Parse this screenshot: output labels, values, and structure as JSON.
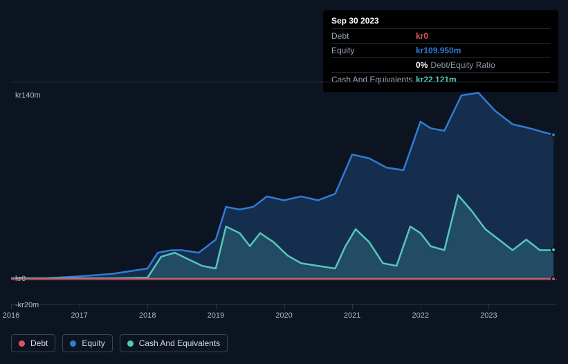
{
  "info_panel": {
    "title": "Sep 30 2023",
    "rows": [
      {
        "label": "Debt",
        "value": "kr0",
        "color": "#e15361",
        "extra": ""
      },
      {
        "label": "Equity",
        "value": "kr109.950m",
        "color": "#2f7cd6",
        "extra": ""
      },
      {
        "label": "",
        "value": "0%",
        "color": "#ffffff",
        "extra": "Debt/Equity Ratio"
      },
      {
        "label": "Cash And Equivalents",
        "value": "kr22.121m",
        "color": "#56c8b7",
        "extra": ""
      }
    ]
  },
  "chart": {
    "type": "line",
    "background_color": "#0d1421",
    "grid_color": "#2a364d",
    "baseline_color": "#58647a",
    "label_color": "#b0b8c4",
    "label_fontsize": 11,
    "ylim": [
      -20,
      150
    ],
    "yticks": [
      {
        "value": 140,
        "label": "kr140m"
      },
      {
        "value": 0,
        "label": "kr0"
      },
      {
        "value": -20,
        "label": "-kr20m"
      }
    ],
    "xlim": [
      2016,
      2024
    ],
    "xticks": [
      {
        "value": 2016,
        "label": "2016"
      },
      {
        "value": 2017,
        "label": "2017"
      },
      {
        "value": 2018,
        "label": "2018"
      },
      {
        "value": 2019,
        "label": "2019"
      },
      {
        "value": 2020,
        "label": "2020"
      },
      {
        "value": 2021,
        "label": "2021"
      },
      {
        "value": 2022,
        "label": "2022"
      },
      {
        "value": 2023,
        "label": "2023"
      }
    ],
    "series": [
      {
        "name": "Debt",
        "color": "#e15361",
        "line_width": 3,
        "fill_opacity": 0,
        "end_marker": true,
        "points": [
          [
            2016.0,
            0
          ],
          [
            2016.5,
            0
          ],
          [
            2017.0,
            0
          ],
          [
            2017.5,
            0
          ],
          [
            2018.0,
            0
          ],
          [
            2018.5,
            0
          ],
          [
            2019.0,
            0
          ],
          [
            2019.5,
            0
          ],
          [
            2020.0,
            0
          ],
          [
            2020.5,
            0
          ],
          [
            2021.0,
            0
          ],
          [
            2021.5,
            0
          ],
          [
            2022.0,
            0
          ],
          [
            2022.5,
            0
          ],
          [
            2023.0,
            0
          ],
          [
            2023.5,
            0
          ],
          [
            2023.95,
            0
          ]
        ]
      },
      {
        "name": "Equity",
        "color": "#2f7cd6",
        "line_width": 2.5,
        "fill_opacity": 0.25,
        "end_marker": true,
        "points": [
          [
            2016.0,
            0
          ],
          [
            2016.5,
            0.5
          ],
          [
            2017.0,
            2
          ],
          [
            2017.25,
            3
          ],
          [
            2017.5,
            4
          ],
          [
            2017.75,
            6
          ],
          [
            2018.0,
            8
          ],
          [
            2018.15,
            20
          ],
          [
            2018.35,
            22
          ],
          [
            2018.5,
            22
          ],
          [
            2018.75,
            20
          ],
          [
            2019.0,
            30
          ],
          [
            2019.15,
            55
          ],
          [
            2019.35,
            53
          ],
          [
            2019.55,
            55
          ],
          [
            2019.75,
            63
          ],
          [
            2020.0,
            60
          ],
          [
            2020.25,
            63
          ],
          [
            2020.5,
            60
          ],
          [
            2020.75,
            65
          ],
          [
            2021.0,
            95
          ],
          [
            2021.25,
            92
          ],
          [
            2021.5,
            85
          ],
          [
            2021.75,
            83
          ],
          [
            2022.0,
            120
          ],
          [
            2022.15,
            115
          ],
          [
            2022.35,
            113
          ],
          [
            2022.6,
            140
          ],
          [
            2022.85,
            142
          ],
          [
            2023.1,
            128
          ],
          [
            2023.35,
            118
          ],
          [
            2023.6,
            115
          ],
          [
            2023.8,
            112
          ],
          [
            2023.95,
            110
          ]
        ]
      },
      {
        "name": "Cash And Equivalents",
        "color": "#56c8b7",
        "line_width": 2.5,
        "fill_opacity": 0.2,
        "end_marker": true,
        "points": [
          [
            2016.0,
            0.5
          ],
          [
            2016.5,
            0.5
          ],
          [
            2017.0,
            0.5
          ],
          [
            2017.5,
            0.5
          ],
          [
            2018.0,
            1
          ],
          [
            2018.2,
            17
          ],
          [
            2018.4,
            20
          ],
          [
            2018.6,
            15
          ],
          [
            2018.8,
            10
          ],
          [
            2019.0,
            8
          ],
          [
            2019.15,
            40
          ],
          [
            2019.35,
            35
          ],
          [
            2019.5,
            25
          ],
          [
            2019.65,
            35
          ],
          [
            2019.85,
            28
          ],
          [
            2020.05,
            18
          ],
          [
            2020.25,
            12
          ],
          [
            2020.5,
            10
          ],
          [
            2020.75,
            8
          ],
          [
            2020.9,
            25
          ],
          [
            2021.05,
            38
          ],
          [
            2021.25,
            28
          ],
          [
            2021.45,
            12
          ],
          [
            2021.65,
            10
          ],
          [
            2021.85,
            40
          ],
          [
            2022.0,
            35
          ],
          [
            2022.15,
            25
          ],
          [
            2022.35,
            22
          ],
          [
            2022.55,
            64
          ],
          [
            2022.75,
            52
          ],
          [
            2022.95,
            38
          ],
          [
            2023.15,
            30
          ],
          [
            2023.35,
            22
          ],
          [
            2023.55,
            30
          ],
          [
            2023.75,
            22
          ],
          [
            2023.95,
            22
          ]
        ]
      }
    ]
  },
  "legend": {
    "items": [
      {
        "label": "Debt",
        "color": "#e15361"
      },
      {
        "label": "Equity",
        "color": "#2f7cd6"
      },
      {
        "label": "Cash And Equivalents",
        "color": "#56c8b7"
      }
    ],
    "border_color": "#3a4559"
  }
}
